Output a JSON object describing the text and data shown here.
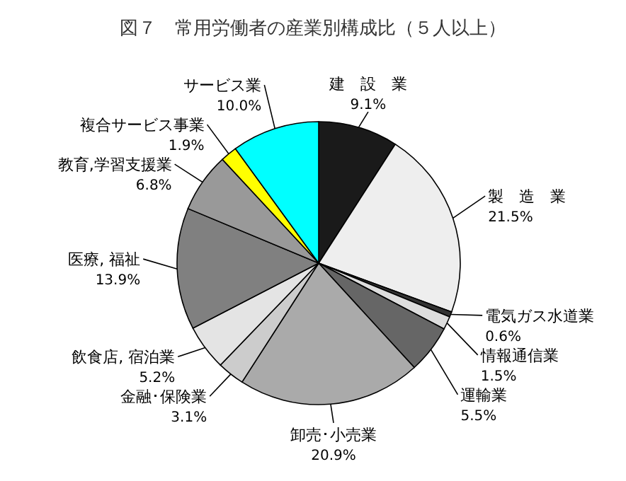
{
  "chart_data": {
    "type": "pie",
    "title": "図７　常用労働者の産業別構成比（５人以上）",
    "categories": [
      "建　設　業",
      "製　造　業",
      "電気ガス水道業",
      "情報通信業",
      "運輸業",
      "卸売･小売業",
      "金融･保険業",
      "飲食店, 宿泊業",
      "医療, 福祉",
      "教育,学習支援業",
      "複合サービス事業",
      "サービス業"
    ],
    "values": [
      9.1,
      21.5,
      0.6,
      1.5,
      5.5,
      20.9,
      3.1,
      5.2,
      13.9,
      6.8,
      1.9,
      10.0
    ],
    "value_labels": [
      "9.1%",
      "21.5%",
      "0.6%",
      "1.5%",
      "5.5%",
      "20.9%",
      "3.1%",
      "5.2%",
      "13.9%",
      "6.8%",
      "1.9%",
      "10.0%"
    ],
    "colors": [
      "#1a1a1a",
      "#eeeeee",
      "#333333",
      "#dddddd",
      "#666666",
      "#aaaaaa",
      "#cccccc",
      "#e4e4e4",
      "#808080",
      "#999999",
      "#ffff00",
      "#00ffff"
    ]
  }
}
